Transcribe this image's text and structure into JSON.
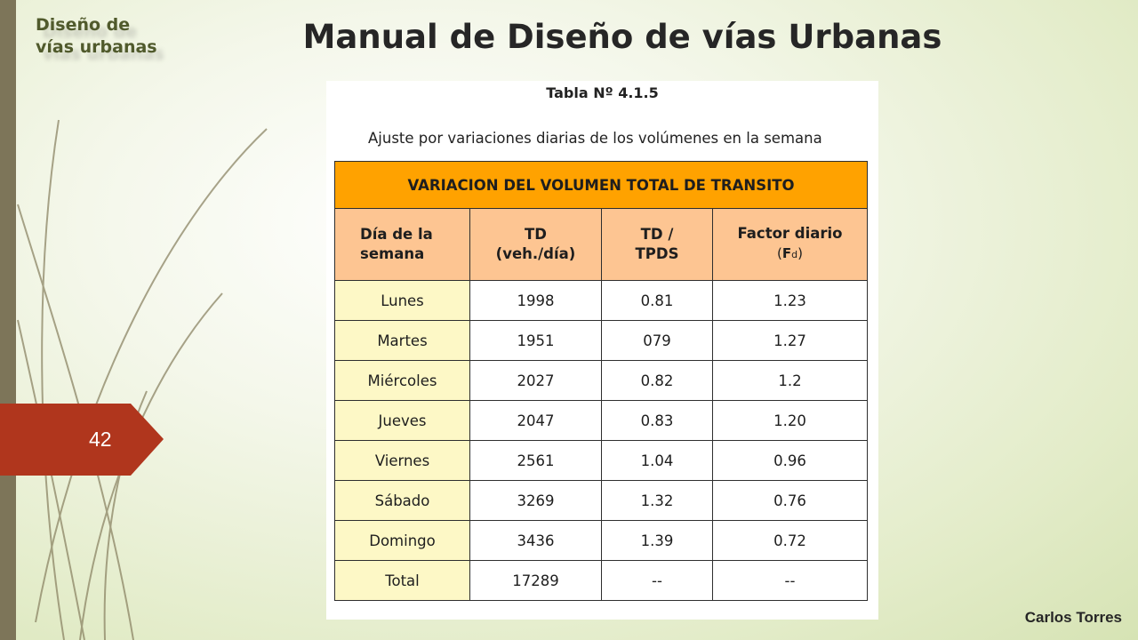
{
  "header": {
    "corner_label_line1": "Diseño de",
    "corner_label_line2": "vías urbanas",
    "title": "Manual de Diseño de vías Urbanas"
  },
  "slide": {
    "page_number": "42",
    "author": "Carlos Torres"
  },
  "table_figure": {
    "title": "Tabla Nº 4.1.5",
    "subtitle": "Ajuste por variaciones diarias de los volúmenes en la semana",
    "banner": "VARIACION DEL VOLUMEN TOTAL DE TRANSITO",
    "columns": {
      "day": [
        "Día de la",
        "semana"
      ],
      "td": [
        "TD",
        "(veh./día)"
      ],
      "ratio": [
        "TD /",
        "TPDS"
      ],
      "factor": [
        "Factor diario",
        "(",
        "F",
        "d",
        ")"
      ]
    },
    "rows": [
      {
        "day": "Lunes",
        "td": "1998",
        "ratio": "0.81",
        "factor": "1.23"
      },
      {
        "day": "Martes",
        "td": "1951",
        "ratio": "079",
        "factor": "1.27"
      },
      {
        "day": "Miércoles",
        "td": "2027",
        "ratio": "0.82",
        "factor": "1.2"
      },
      {
        "day": "Jueves",
        "td": "2047",
        "ratio": "0.83",
        "factor": "1.20"
      },
      {
        "day": "Viernes",
        "td": "2561",
        "ratio": "1.04",
        "factor": "0.96"
      },
      {
        "day": "Sábado",
        "td": "3269",
        "ratio": "1.32",
        "factor": "0.76"
      },
      {
        "day": "Domingo",
        "td": "3436",
        "ratio": "1.39",
        "factor": "0.72"
      },
      {
        "day": "Total",
        "td": "17289",
        "ratio": "--",
        "factor": "--"
      }
    ]
  },
  "colors": {
    "banner": "#ffa200",
    "header_cells": "#fdc592",
    "day_cells": "#fdf8c6",
    "page_tab": "#b0361d",
    "left_strip": "#7d7559"
  }
}
